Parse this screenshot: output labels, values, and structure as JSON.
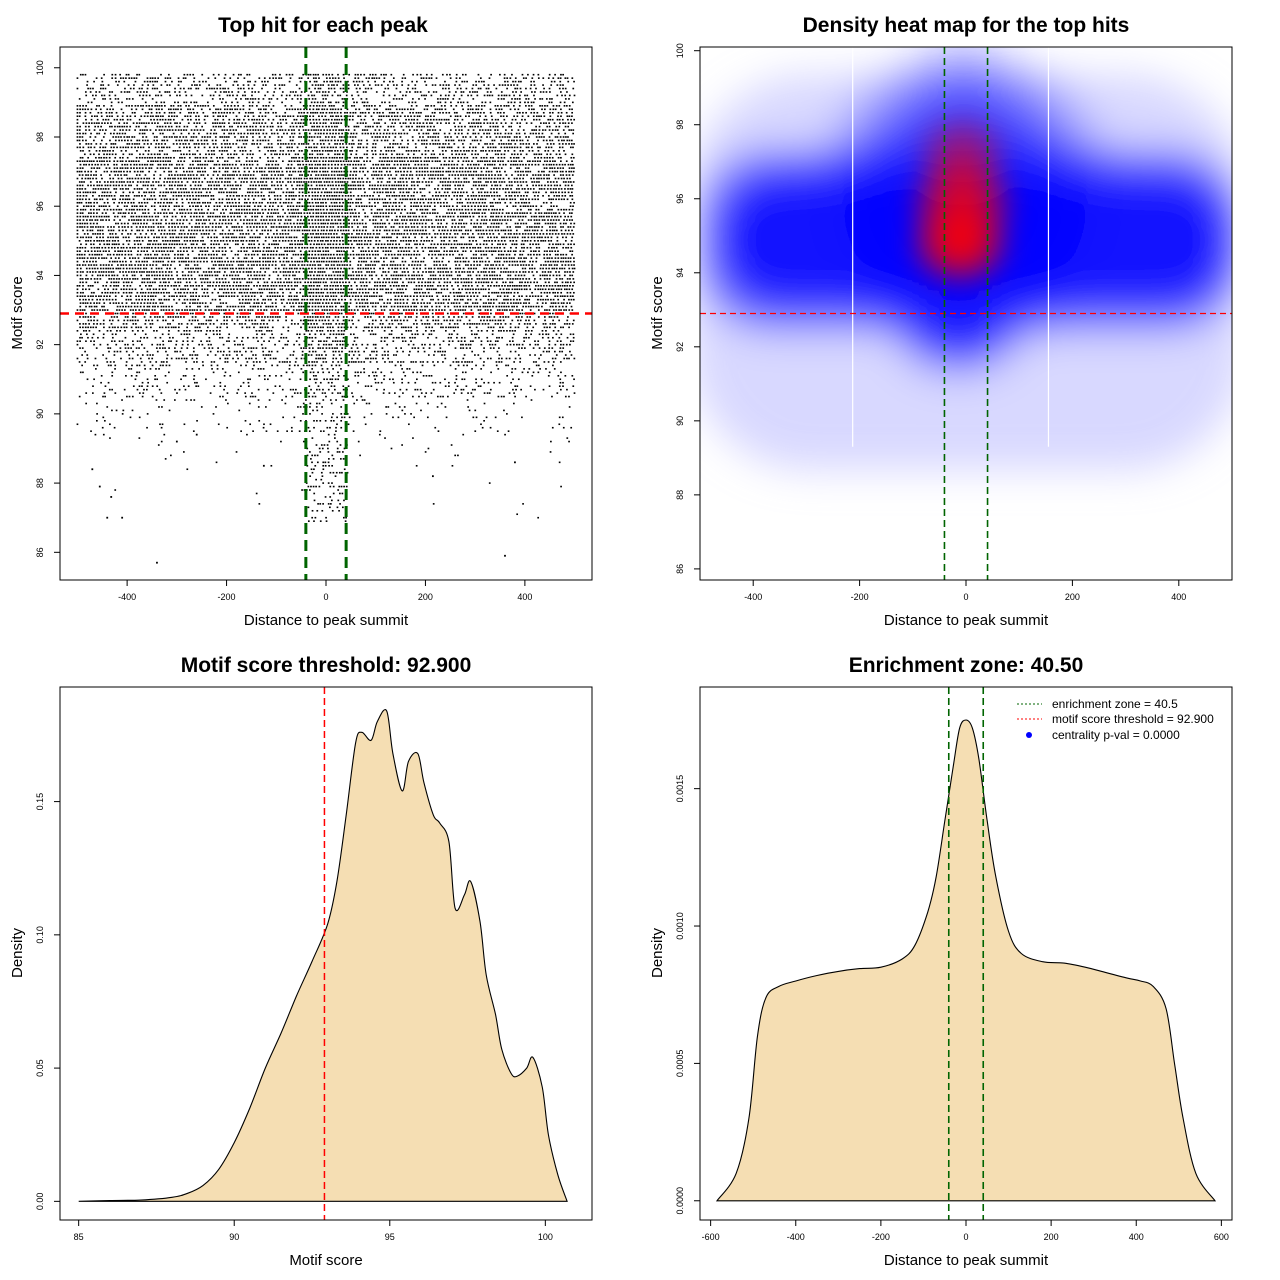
{
  "colors": {
    "threshold": "#ff0000",
    "zone": "#006400",
    "density_fill": "#f5deb3",
    "heat_low": "#ffffff",
    "heat_mid": "#0000ff",
    "heat_high": "#ff0000",
    "legend_point": "#0000ff"
  },
  "chart_data": [
    {
      "id": "scatter",
      "type": "scatter",
      "title": "Top hit for each peak",
      "xlabel": "Distance to peak summit",
      "ylabel": "Motif score",
      "xlim": [
        -535,
        535
      ],
      "ylim": [
        85.2,
        100.6
      ],
      "xticks": [
        -400,
        -200,
        0,
        200,
        400
      ],
      "yticks": [
        86,
        88,
        90,
        92,
        94,
        96,
        98,
        100
      ],
      "threshold": 92.9,
      "zone": [
        -40.5,
        40.5
      ],
      "points": [
        [
          -340,
          85.7
        ],
        [
          360,
          85.9
        ],
        [
          -440,
          87
        ],
        [
          -410,
          87
        ],
        [
          -432,
          87.6
        ],
        [
          -455,
          87.9
        ],
        [
          -125,
          88.5
        ],
        [
          215,
          88.2
        ],
        [
          380,
          88.6
        ],
        [
          -470,
          88.4
        ],
        [
          -300,
          89.2
        ],
        [
          -260,
          89.4
        ]
      ]
    },
    {
      "id": "heatmap",
      "type": "heatmap",
      "title": "Density heat map for the top hits",
      "xlabel": "Distance to peak summit",
      "ylabel": "Motif score",
      "xlim": [
        -500,
        500
      ],
      "ylim": [
        85.7,
        100.1
      ],
      "xticks": [
        -400,
        -200,
        0,
        200,
        400
      ],
      "yticks": [
        86,
        88,
        90,
        92,
        94,
        96,
        98,
        100
      ],
      "threshold": 92.9,
      "zone": [
        -40.5,
        40.5
      ],
      "white_lines": [
        -213,
        155
      ]
    },
    {
      "id": "score-density",
      "type": "area",
      "title": "Motif score threshold: 92.900",
      "xlabel": "Motif score",
      "ylabel": "Density",
      "xlim": [
        84.4,
        101.5
      ],
      "ylim": [
        -0.007,
        0.193
      ],
      "xticks": [
        85,
        90,
        95,
        100
      ],
      "yticks": [
        0.0,
        0.05,
        0.1,
        0.15
      ],
      "ytick_labels": [
        "0.00",
        "0.05",
        "0.10",
        "0.15"
      ],
      "threshold": 92.9,
      "x": [
        85.0,
        86.0,
        87.0,
        88.0,
        88.5,
        89.0,
        89.5,
        90.0,
        90.5,
        91.0,
        91.5,
        92.0,
        92.5,
        93.0,
        93.3,
        93.6,
        93.9,
        94.1,
        94.4,
        94.6,
        94.9,
        95.1,
        95.4,
        95.6,
        95.9,
        96.1,
        96.4,
        96.6,
        96.9,
        97.1,
        97.4,
        97.6,
        97.9,
        98.1,
        98.4,
        98.6,
        98.9,
        99.1,
        99.4,
        99.6,
        99.9,
        100.1,
        100.4,
        100.7
      ],
      "y": [
        0.0,
        0.0003,
        0.0005,
        0.0015,
        0.003,
        0.006,
        0.012,
        0.022,
        0.035,
        0.05,
        0.063,
        0.077,
        0.09,
        0.104,
        0.12,
        0.145,
        0.172,
        0.176,
        0.173,
        0.18,
        0.184,
        0.168,
        0.154,
        0.165,
        0.168,
        0.157,
        0.145,
        0.142,
        0.135,
        0.11,
        0.115,
        0.12,
        0.105,
        0.085,
        0.07,
        0.057,
        0.048,
        0.047,
        0.05,
        0.054,
        0.043,
        0.025,
        0.01,
        0.0
      ]
    },
    {
      "id": "distance-density",
      "type": "area",
      "title": "Enrichment zone: 40.50",
      "xlabel": "Distance to peak summit",
      "ylabel": "Density",
      "xlim": [
        -625,
        625
      ],
      "ylim": [
        -7e-05,
        0.00187
      ],
      "xticks": [
        -600,
        -400,
        -200,
        0,
        200,
        400,
        600
      ],
      "yticks": [
        0.0,
        0.0005,
        0.001,
        0.0015
      ],
      "ytick_labels": [
        "0.0000",
        "0.0005",
        "0.0010",
        "0.0015"
      ],
      "zone": [
        -40.5,
        40.5
      ],
      "x": [
        -585,
        -540,
        -510,
        -490,
        -470,
        -440,
        -400,
        -350,
        -300,
        -250,
        -200,
        -150,
        -120,
        -90,
        -70,
        -50,
        -30,
        -15,
        0,
        15,
        30,
        50,
        70,
        100,
        130,
        180,
        230,
        280,
        330,
        380,
        410,
        440,
        470,
        490,
        510,
        540,
        585
      ],
      "y": [
        0.0,
        0.0001,
        0.0003,
        0.0006,
        0.00074,
        0.00078,
        0.0008,
        0.00082,
        0.000835,
        0.000845,
        0.00085,
        0.00088,
        0.00093,
        0.00105,
        0.00118,
        0.00138,
        0.00158,
        0.00172,
        0.00175,
        0.00172,
        0.00161,
        0.00138,
        0.00118,
        0.00098,
        0.0009,
        0.00087,
        0.000865,
        0.00085,
        0.00083,
        0.00081,
        0.0008,
        0.00078,
        0.0007,
        0.0005,
        0.0003,
        0.0001,
        0.0
      ]
    }
  ],
  "legend": [
    {
      "label": "enrichment zone = 40.5",
      "style": "dotted-green"
    },
    {
      "label": "motif score threshold = 92.900",
      "style": "dotted-red"
    },
    {
      "label": "centrality p-val = 0.0000",
      "style": "dot-blue"
    }
  ]
}
